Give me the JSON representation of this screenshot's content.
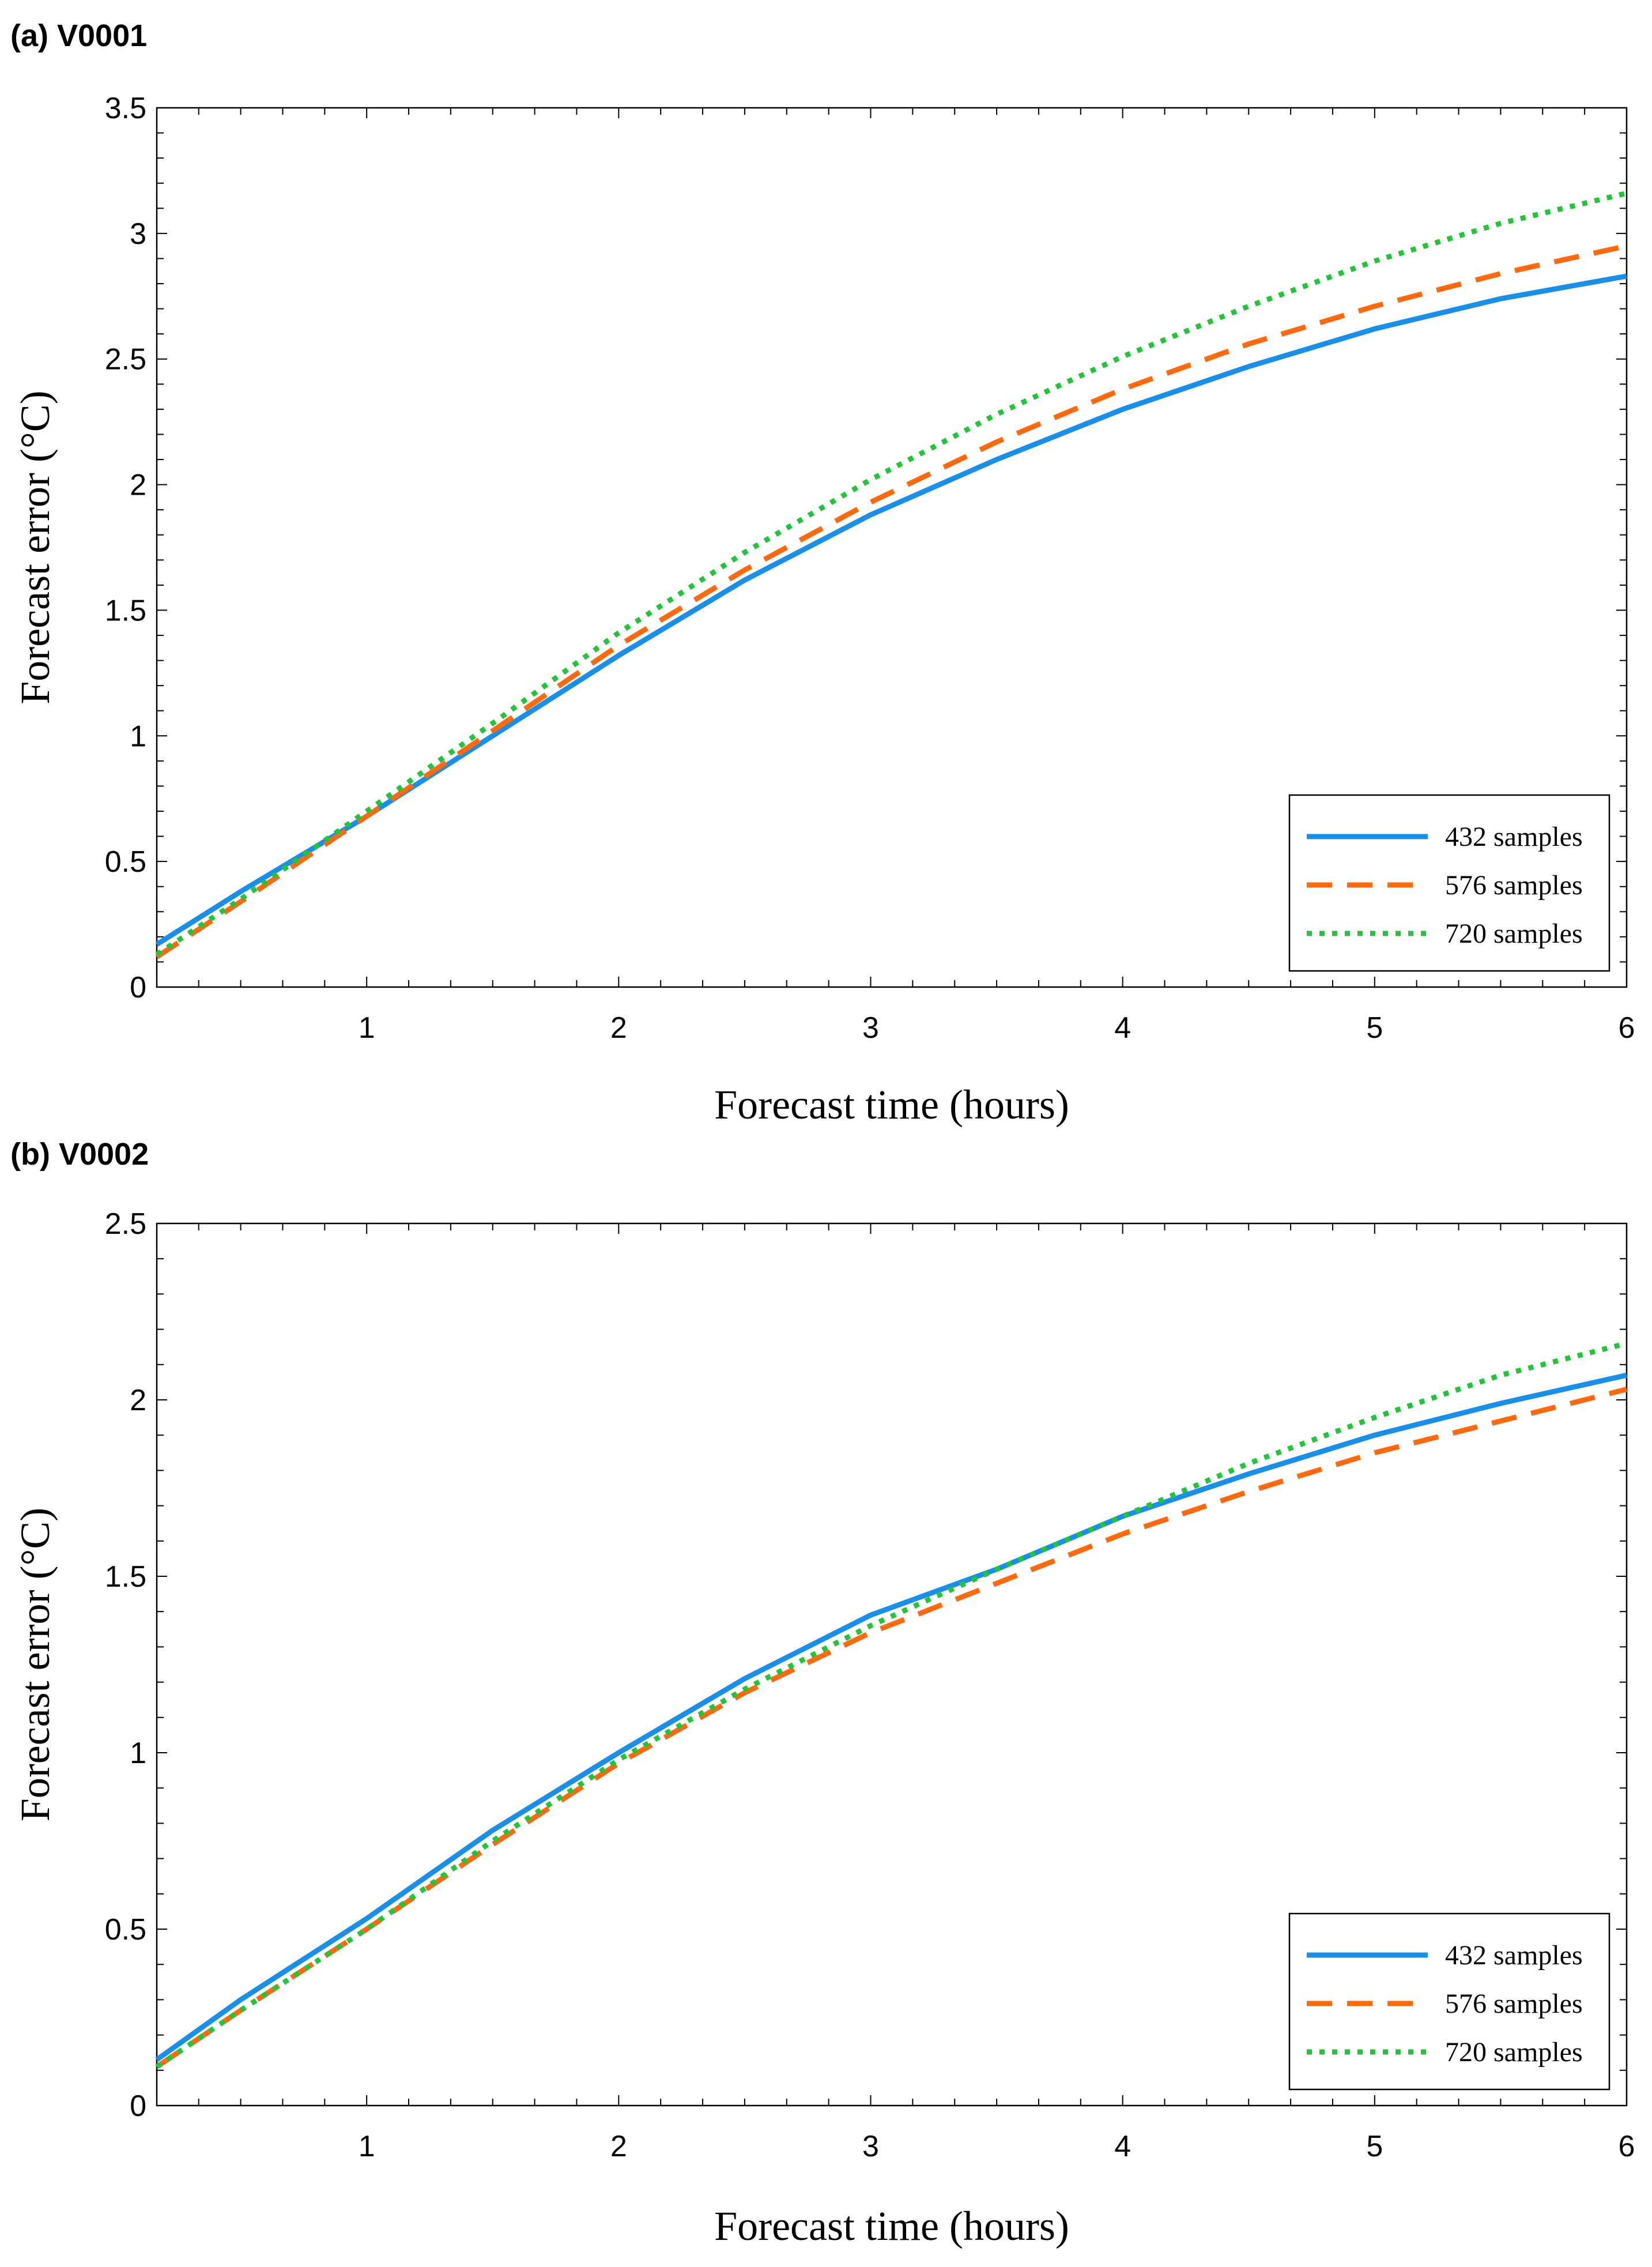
{
  "chart_data": [
    {
      "type": "line",
      "panel_label": "(a) V0001",
      "xlabel": "Forecast time (hours)",
      "ylabel": "Forecast error (°C)",
      "xlim": [
        0.167,
        6
      ],
      "ylim": [
        0,
        3.5
      ],
      "xticks": [
        1,
        2,
        3,
        4,
        5,
        6
      ],
      "xtick_labels": [
        "1",
        "2",
        "3",
        "4",
        "5",
        "6"
      ],
      "yticks": [
        0,
        0.5,
        1,
        1.5,
        2,
        2.5,
        3,
        3.5
      ],
      "ytick_labels": [
        "0",
        "0.5",
        "1",
        "1.5",
        "2",
        "2.5",
        "3",
        "3.5"
      ],
      "legend_position": "bottom-right",
      "x": [
        0.167,
        0.5,
        1,
        1.5,
        2,
        2.5,
        3,
        3.5,
        4,
        4.5,
        5,
        5.5,
        6
      ],
      "series": [
        {
          "name": "432 samples",
          "color": "#1a8fe8",
          "style": "solid",
          "values": [
            0.17,
            0.38,
            0.68,
            1.0,
            1.32,
            1.62,
            1.88,
            2.1,
            2.3,
            2.47,
            2.62,
            2.74,
            2.83
          ]
        },
        {
          "name": "576 samples",
          "color": "#ff6a0f",
          "style": "dashed",
          "values": [
            0.12,
            0.34,
            0.68,
            1.02,
            1.36,
            1.66,
            1.93,
            2.17,
            2.38,
            2.56,
            2.71,
            2.84,
            2.95
          ]
        },
        {
          "name": "720 samples",
          "color": "#22c43a",
          "style": "dotted",
          "values": [
            0.13,
            0.35,
            0.7,
            1.05,
            1.41,
            1.73,
            2.02,
            2.28,
            2.51,
            2.71,
            2.89,
            3.04,
            3.16
          ]
        }
      ]
    },
    {
      "type": "line",
      "panel_label": "(b) V0002",
      "xlabel": "Forecast time (hours)",
      "ylabel": "Forecast error (°C)",
      "xlim": [
        0.167,
        6
      ],
      "ylim": [
        0,
        2.5
      ],
      "xticks": [
        1,
        2,
        3,
        4,
        5,
        6
      ],
      "xtick_labels": [
        "1",
        "2",
        "3",
        "4",
        "5",
        "6"
      ],
      "yticks": [
        0,
        0.5,
        1,
        1.5,
        2,
        2.5
      ],
      "ytick_labels": [
        "0",
        "0.5",
        "1",
        "1.5",
        "2",
        "2.5"
      ],
      "legend_position": "bottom-right",
      "x": [
        0.167,
        0.5,
        1,
        1.5,
        2,
        2.5,
        3,
        3.5,
        4,
        4.5,
        5,
        5.5,
        6
      ],
      "series": [
        {
          "name": "432 samples",
          "color": "#1a8fe8",
          "style": "solid",
          "values": [
            0.13,
            0.3,
            0.53,
            0.78,
            1.0,
            1.21,
            1.39,
            1.52,
            1.67,
            1.79,
            1.9,
            1.99,
            2.07
          ]
        },
        {
          "name": "576 samples",
          "color": "#ff6a0f",
          "style": "dashed",
          "values": [
            0.11,
            0.27,
            0.5,
            0.74,
            0.97,
            1.17,
            1.34,
            1.48,
            1.62,
            1.74,
            1.85,
            1.94,
            2.03
          ]
        },
        {
          "name": "720 samples",
          "color": "#22c43a",
          "style": "dotted",
          "values": [
            0.11,
            0.27,
            0.5,
            0.75,
            0.98,
            1.18,
            1.36,
            1.52,
            1.67,
            1.82,
            1.95,
            2.07,
            2.16
          ]
        }
      ]
    }
  ]
}
